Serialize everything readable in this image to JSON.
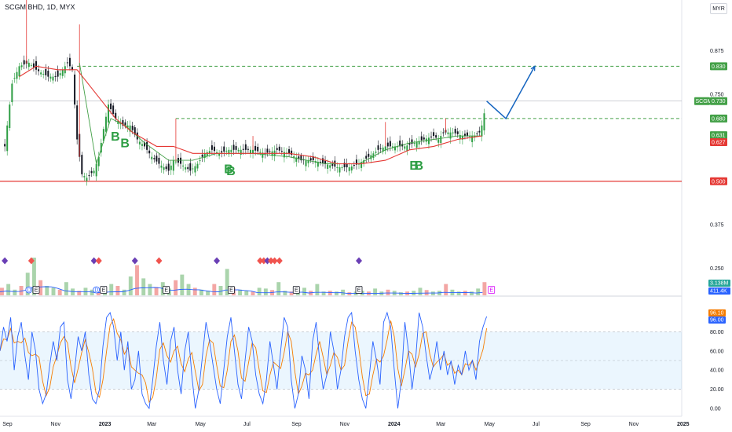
{
  "header": {
    "symbol": "SCGM BHD, 1D, MYX",
    "currency": "MYR"
  },
  "colors": {
    "up": "#2e9e44",
    "down": "#131722",
    "ma_red": "#e53935",
    "ma_green": "#43a047",
    "target": "#1565c0",
    "stoch_k": "#2962ff",
    "stoch_d": "#f57c00",
    "support": "#e53935",
    "diamond_purple": "#6a3fb5",
    "diamond_red": "#f0544f"
  },
  "chart_data": [
    {
      "type": "candlestick",
      "symbol": "SCGM BHD",
      "timeframe": "1D",
      "exchange": "MYX",
      "currency": "MYR",
      "ylim": [
        0.22,
        1.02
      ],
      "y_ticks": [
        0.25,
        0.375,
        0.5,
        0.625,
        0.75,
        0.875
      ],
      "x_ticks": [
        "Sep",
        "Nov",
        "2023",
        "Mar",
        "May",
        "Jul",
        "Sep",
        "Nov",
        "2024",
        "Mar",
        "May",
        "Jul",
        "Sep",
        "Nov",
        "2025"
      ],
      "x_range_months": [
        0,
        28.3
      ],
      "close_path": [
        [
          0.2,
          0.6
        ],
        [
          0.5,
          0.78
        ],
        [
          0.8,
          0.83
        ],
        [
          1.2,
          0.84
        ],
        [
          1.5,
          0.82
        ],
        [
          2.0,
          0.8
        ],
        [
          2.4,
          0.8
        ],
        [
          2.8,
          0.84
        ],
        [
          3.0,
          0.82
        ],
        [
          3.2,
          0.62
        ],
        [
          3.4,
          0.52
        ],
        [
          3.6,
          0.51
        ],
        [
          3.9,
          0.53
        ],
        [
          4.1,
          0.57
        ],
        [
          4.3,
          0.65
        ],
        [
          4.5,
          0.72
        ],
        [
          4.8,
          0.68
        ],
        [
          5.1,
          0.66
        ],
        [
          5.4,
          0.66
        ],
        [
          5.7,
          0.62
        ],
        [
          6.0,
          0.6
        ],
        [
          6.3,
          0.57
        ],
        [
          6.6,
          0.55
        ],
        [
          7.0,
          0.53
        ],
        [
          7.2,
          0.56
        ],
        [
          7.5,
          0.55
        ],
        [
          7.9,
          0.53
        ],
        [
          8.2,
          0.55
        ],
        [
          8.5,
          0.58
        ],
        [
          8.8,
          0.59
        ],
        [
          9.1,
          0.58
        ],
        [
          9.5,
          0.59
        ],
        [
          10.0,
          0.59
        ],
        [
          10.5,
          0.59
        ],
        [
          11.0,
          0.58
        ],
        [
          11.5,
          0.59
        ],
        [
          12.0,
          0.58
        ],
        [
          12.5,
          0.56
        ],
        [
          13.0,
          0.56
        ],
        [
          13.5,
          0.55
        ],
        [
          14.0,
          0.54
        ],
        [
          14.5,
          0.54
        ],
        [
          14.9,
          0.55
        ],
        [
          15.3,
          0.57
        ],
        [
          15.7,
          0.59
        ],
        [
          16.0,
          0.6
        ],
        [
          16.4,
          0.6
        ],
        [
          16.8,
          0.6
        ],
        [
          17.2,
          0.61
        ],
        [
          17.6,
          0.62
        ],
        [
          18.0,
          0.63
        ],
        [
          18.2,
          0.62
        ],
        [
          18.4,
          0.64
        ],
        [
          18.8,
          0.64
        ],
        [
          19.2,
          0.63
        ],
        [
          19.5,
          0.63
        ],
        [
          19.7,
          0.63
        ],
        [
          19.9,
          0.64
        ],
        [
          20.0,
          0.66
        ],
        [
          20.2,
          0.73
        ]
      ],
      "spikes": [
        [
          1.1,
          1.02
        ],
        [
          3.3,
          0.95
        ],
        [
          7.3,
          0.68
        ],
        [
          10.5,
          0.63
        ],
        [
          16.0,
          0.67
        ],
        [
          18.5,
          0.68
        ]
      ],
      "ma_red_path": [
        [
          0.8,
          0.8
        ],
        [
          1.5,
          0.83
        ],
        [
          2.4,
          0.82
        ],
        [
          3.2,
          0.82
        ],
        [
          4.0,
          0.75
        ],
        [
          4.8,
          0.68
        ],
        [
          5.5,
          0.64
        ],
        [
          6.5,
          0.6
        ],
        [
          7.2,
          0.6
        ],
        [
          8.0,
          0.58
        ],
        [
          9.0,
          0.58
        ],
        [
          10.5,
          0.58
        ],
        [
          12.0,
          0.58
        ],
        [
          13.0,
          0.57
        ],
        [
          14.0,
          0.55
        ],
        [
          15.0,
          0.55
        ],
        [
          16.0,
          0.56
        ],
        [
          17.0,
          0.59
        ],
        [
          18.0,
          0.6
        ],
        [
          19.0,
          0.62
        ],
        [
          20.0,
          0.63
        ]
      ],
      "ma_green_path": [
        [
          3.3,
          0.84
        ],
        [
          4.0,
          0.55
        ],
        [
          4.6,
          0.68
        ],
        [
          5.2,
          0.66
        ],
        [
          6.0,
          0.61
        ],
        [
          7.0,
          0.56
        ],
        [
          8.0,
          0.56
        ],
        [
          9.0,
          0.58
        ],
        [
          10.5,
          0.58
        ],
        [
          12.0,
          0.57
        ],
        [
          13.5,
          0.55
        ],
        [
          14.9,
          0.55
        ],
        [
          16.0,
          0.59
        ],
        [
          17.0,
          0.61
        ],
        [
          18.0,
          0.62
        ],
        [
          19.0,
          0.63
        ],
        [
          20.0,
          0.63
        ]
      ],
      "target_path": [
        [
          20.2,
          0.73
        ],
        [
          21.0,
          0.68
        ],
        [
          22.2,
          0.83
        ]
      ],
      "levels": [
        {
          "price": 0.83,
          "label": "0.830",
          "style": "dashed-green",
          "start_month": 3.2
        },
        {
          "price": 0.68,
          "label": "0.680",
          "style": "dashed-green",
          "start_month": 7.3
        },
        {
          "price": 0.5,
          "label": "0.500",
          "style": "solid-red",
          "start_month": 0
        },
        {
          "price": 0.73,
          "label": "0.730",
          "style": "thin-grey",
          "start_month": 0
        }
      ],
      "price_tags": [
        {
          "label": "0.830",
          "price": 0.83,
          "color": "#43a047"
        },
        {
          "label": "0.730",
          "price": 0.73,
          "color": "#43a047",
          "prefix": "SCGM"
        },
        {
          "label": "0.680",
          "price": 0.68,
          "color": "#43a047"
        },
        {
          "label": "0.631",
          "price": 0.632,
          "color": "#43a047"
        },
        {
          "label": "0.627",
          "price": 0.612,
          "color": "#e53935"
        },
        {
          "label": "0.500",
          "price": 0.5,
          "color": "#e53935"
        }
      ],
      "buy_labels": [
        {
          "text": "B",
          "month": 4.6,
          "price": 0.617
        },
        {
          "text": "B",
          "month": 5.0,
          "price": 0.597
        },
        {
          "text": "B",
          "month": 9.3,
          "price": 0.523
        },
        {
          "text": "B",
          "month": 9.4,
          "price": 0.518
        },
        {
          "text": "B",
          "month": 17.0,
          "price": 0.533
        },
        {
          "text": "B",
          "month": 17.2,
          "price": 0.533
        }
      ]
    },
    {
      "type": "volume",
      "last_volume": "3.138M",
      "volume_ma": "411.4K",
      "volume_bars": [
        0.2,
        0.3,
        0.15,
        0.25,
        0.6,
        1.0,
        0.4,
        0.25,
        0.2,
        0.15,
        0.35,
        0.18,
        0.12,
        0.2,
        0.15,
        0.1,
        0.22,
        0.3,
        0.25,
        0.15,
        0.5,
        0.8,
        0.45,
        0.3,
        0.22,
        0.35,
        0.18,
        0.4,
        0.55,
        0.3,
        0.2,
        0.15,
        0.12,
        0.3,
        0.25,
        0.7,
        0.2,
        0.15,
        0.12,
        0.1,
        0.2,
        0.18,
        0.14,
        0.35,
        0.12,
        0.1,
        0.15,
        0.2,
        0.12,
        0.3,
        0.1,
        0.12,
        0.1,
        0.15,
        0.08,
        0.1,
        0.12,
        0.1,
        0.18,
        0.1,
        0.15,
        0.12,
        0.08,
        0.1,
        0.12,
        0.2,
        0.14,
        0.1,
        0.12,
        0.3,
        0.15,
        0.1,
        0.12,
        0.1,
        0.18,
        0.35
      ],
      "diamonds": [
        {
          "month": 0.2,
          "kind": "purple"
        },
        {
          "month": 1.3,
          "kind": "red"
        },
        {
          "month": 3.9,
          "kind": "purple"
        },
        {
          "month": 4.1,
          "kind": "red"
        },
        {
          "month": 5.6,
          "kind": "purple"
        },
        {
          "month": 6.6,
          "kind": "red"
        },
        {
          "month": 9.0,
          "kind": "purple"
        },
        {
          "month": 10.8,
          "kind": "red"
        },
        {
          "month": 10.95,
          "kind": "red"
        },
        {
          "month": 11.1,
          "kind": "purple"
        },
        {
          "month": 11.25,
          "kind": "red"
        },
        {
          "month": 11.4,
          "kind": "red"
        },
        {
          "month": 11.6,
          "kind": "red"
        },
        {
          "month": 14.9,
          "kind": "purple"
        }
      ],
      "events": [
        {
          "text": "D",
          "month": 1.2,
          "style": "circle"
        },
        {
          "text": "E",
          "month": 1.5,
          "style": "square"
        },
        {
          "text": "D",
          "month": 4.0,
          "style": "circle"
        },
        {
          "text": "E",
          "month": 4.3,
          "style": "square"
        },
        {
          "text": "E",
          "month": 6.9,
          "style": "square"
        },
        {
          "text": "E",
          "month": 9.6,
          "style": "square"
        },
        {
          "text": "E",
          "month": 12.3,
          "style": "square"
        },
        {
          "text": "E",
          "month": 14.9,
          "style": "square"
        },
        {
          "text": "E",
          "month": 20.4,
          "style": "pink"
        }
      ]
    },
    {
      "type": "line",
      "indicator": "stochastic",
      "ylim": [
        0,
        100
      ],
      "y_ticks": [
        "0.00",
        "20.00",
        "40.00",
        "60.00",
        "80.00"
      ],
      "band": [
        20,
        80
      ],
      "k_value": "96.00",
      "d_value": "96.10",
      "k_values": [
        60,
        85,
        70,
        95,
        40,
        75,
        90,
        55,
        30,
        80,
        60,
        20,
        5,
        15,
        45,
        70,
        50,
        85,
        90,
        30,
        10,
        40,
        75,
        60,
        80,
        35,
        10,
        5,
        20,
        65,
        95,
        100,
        85,
        50,
        80,
        40,
        70,
        20,
        30,
        60,
        15,
        5,
        0,
        30,
        65,
        90,
        50,
        25,
        70,
        85,
        40,
        15,
        60,
        80,
        35,
        0,
        20,
        55,
        90,
        70,
        45,
        20,
        5,
        40,
        75,
        95,
        60,
        25,
        10,
        50,
        85,
        70,
        35,
        15,
        5,
        30,
        70,
        45,
        20,
        60,
        95,
        85,
        30,
        0,
        15,
        55,
        40,
        10,
        70,
        90,
        50,
        20,
        35,
        80,
        60,
        20,
        40,
        75,
        95,
        100,
        60,
        30,
        10,
        0,
        35,
        70,
        50,
        25,
        90,
        100,
        85,
        40,
        0,
        30,
        90,
        60,
        20,
        50,
        100,
        85,
        55,
        30,
        45,
        70,
        40,
        60,
        35,
        50,
        25,
        45,
        35,
        60,
        40,
        50,
        30,
        70,
        85,
        96
      ]
    }
  ]
}
